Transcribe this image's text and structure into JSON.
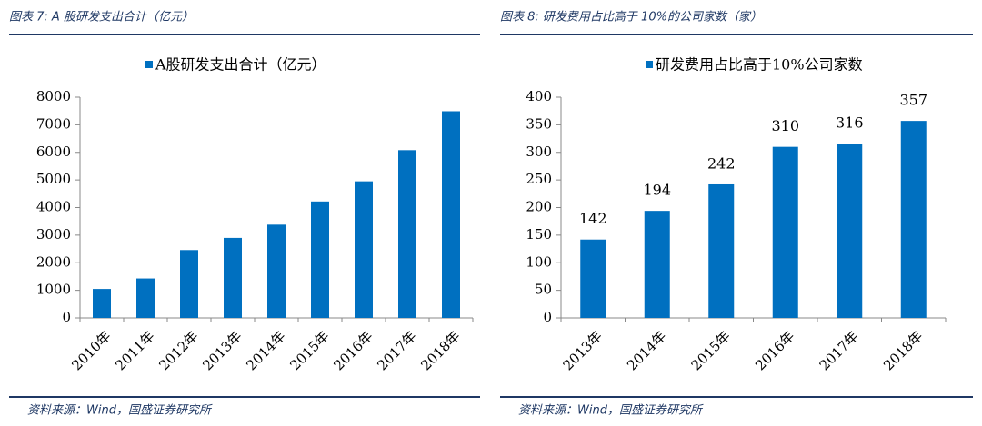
{
  "chart_data": [
    {
      "type": "bar",
      "title": "图表 7: A 股研发支出合计（亿元）",
      "source": "资料来源：Wind，国盛证券研究所",
      "categories": [
        "2010年",
        "2011年",
        "2012年",
        "2013年",
        "2014年",
        "2015年",
        "2016年",
        "2017年",
        "2018年"
      ],
      "series": [
        {
          "name": "A股研发支出合计（亿元）",
          "color": "#0070c0",
          "values": [
            1050,
            1430,
            2460,
            2900,
            3380,
            4220,
            4950,
            6080,
            7490
          ]
        }
      ],
      "ylim": [
        0,
        8000
      ],
      "yticks": [
        0,
        1000,
        2000,
        3000,
        4000,
        5000,
        6000,
        7000,
        8000
      ],
      "grid": false,
      "data_labels": false
    },
    {
      "type": "bar",
      "title": "图表 8: 研发费用占比高于 10%的公司家数（家）",
      "source": "资料来源：Wind，国盛证券研究所",
      "categories": [
        "2013年",
        "2014年",
        "2015年",
        "2016年",
        "2017年",
        "2018年"
      ],
      "series": [
        {
          "name": "研发费用占比高于10%公司家数",
          "color": "#0070c0",
          "values": [
            142,
            194,
            242,
            310,
            316,
            357
          ]
        }
      ],
      "ylim": [
        0,
        400
      ],
      "yticks": [
        0,
        50,
        100,
        150,
        200,
        250,
        300,
        350,
        400
      ],
      "grid": false,
      "data_labels": true
    }
  ]
}
